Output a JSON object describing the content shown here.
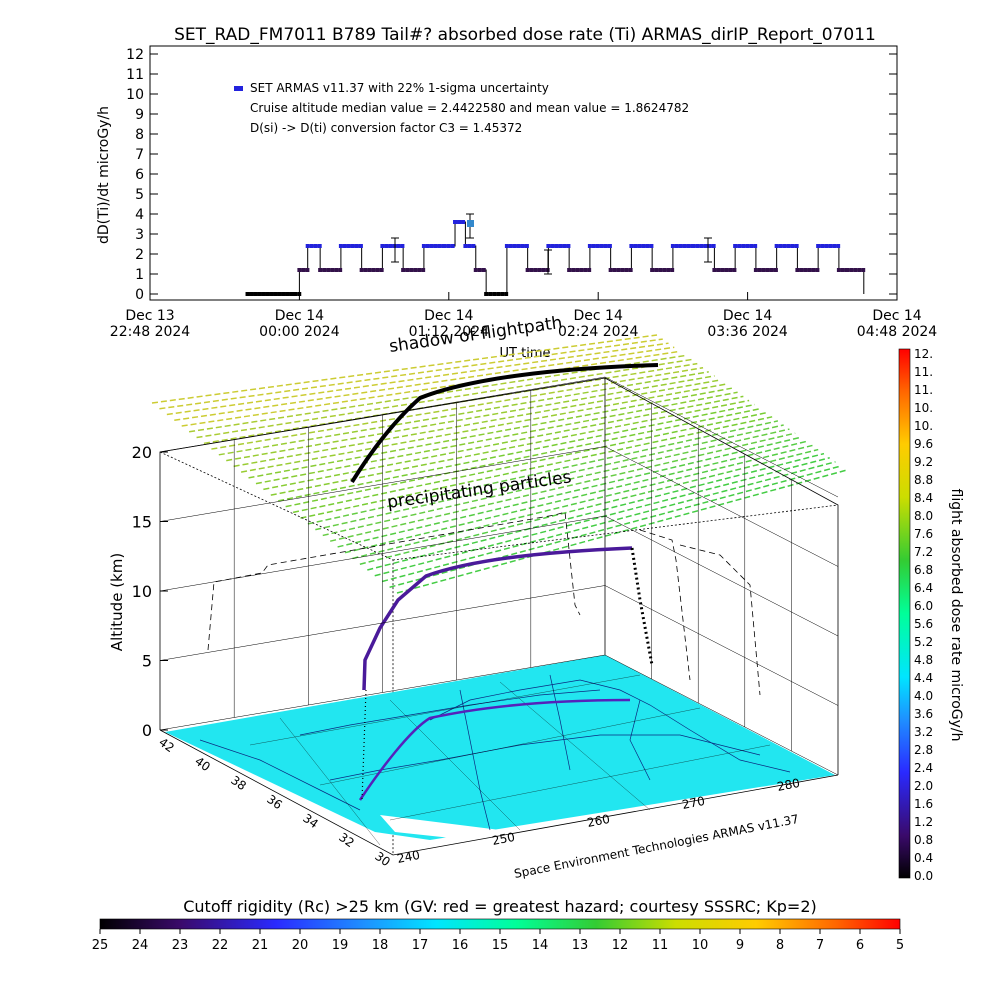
{
  "title": "SET_RAD_FM7011  B789 Tail#? absorbed dose rate (Ti) ARMAS_dirIP_Report_07011",
  "top_chart": {
    "ylabel": "dD(Ti)/dt microGy/h",
    "y_ticks": [
      "0",
      "1",
      "2",
      "3",
      "4",
      "5",
      "6",
      "7",
      "8",
      "9",
      "10",
      "11",
      "12"
    ],
    "legend_series": "SET ARMAS v11.37 with 22% 1-sigma uncertainty",
    "annotation_1": "Cruise altitude median value = 2.4422580 and mean value = 1.8624782",
    "annotation_2": "D(si) -> D(ti) conversion factor C3 = 1.45372",
    "x_ticks": [
      {
        "l1": "Dec 13",
        "l2": "22:48 2024"
      },
      {
        "l1": "Dec 14",
        "l2": "00:00 2024"
      },
      {
        "l1": "Dec 14",
        "l2": "01:12 2024"
      },
      {
        "l1": "Dec 14",
        "l2": "02:24 2024"
      },
      {
        "l1": "Dec 14",
        "l2": "03:36 2024"
      },
      {
        "l1": "Dec 14",
        "l2": "04:48 2024"
      }
    ],
    "xlabel": "UT time"
  },
  "chart_data": [
    {
      "type": "line",
      "title": "SET_RAD_FM7011  B789 Tail#? absorbed dose rate (Ti) ARMAS_dirIP_Report_07011",
      "xlabel": "UT time",
      "ylabel": "dD(Ti)/dt microGy/h",
      "ylim": [
        0,
        12
      ],
      "xlim": [
        "2024-12-13 22:48",
        "2024-12-14 04:48"
      ],
      "series": [
        {
          "name": "SET ARMAS v11.37 with 22% 1-sigma uncertainty",
          "x": [
            "2024-12-13 23:35",
            "2024-12-13 23:58",
            "2024-12-14 00:00",
            "2024-12-14 00:04",
            "2024-12-14 00:10",
            "2024-12-14 00:20",
            "2024-12-14 00:30",
            "2024-12-14 00:40",
            "2024-12-14 00:50",
            "2024-12-14 01:00",
            "2024-12-14 01:10",
            "2024-12-14 01:15",
            "2024-12-14 01:20",
            "2024-12-14 01:25",
            "2024-12-14 01:30",
            "2024-12-14 01:40",
            "2024-12-14 01:50",
            "2024-12-14 02:00",
            "2024-12-14 02:10",
            "2024-12-14 02:20",
            "2024-12-14 02:30",
            "2024-12-14 02:40",
            "2024-12-14 02:50",
            "2024-12-14 03:00",
            "2024-12-14 03:10",
            "2024-12-14 03:20",
            "2024-12-14 03:30",
            "2024-12-14 03:40",
            "2024-12-14 03:50",
            "2024-12-14 04:00",
            "2024-12-14 04:10",
            "2024-12-14 04:20",
            "2024-12-14 04:24",
            "2024-12-14 04:32"
          ],
          "values": [
            0,
            0,
            1.2,
            2.4,
            1.2,
            2.4,
            1.2,
            2.4,
            1.2,
            2.4,
            2.4,
            3.6,
            2.4,
            1.2,
            0,
            2.4,
            1.2,
            2.4,
            1.2,
            2.4,
            1.2,
            2.4,
            1.2,
            2.4,
            2.4,
            1.2,
            2.4,
            1.2,
            2.4,
            1.2,
            2.4,
            1.2,
            1.2,
            0
          ]
        }
      ],
      "stats": {
        "cruise_median": 2.442258,
        "cruise_mean": 1.8624782,
        "conversion_factor_C3": 1.45372
      }
    }
  ],
  "three_d": {
    "shadow_label": "shadow of flightpath",
    "precip_label": "precipitating particles",
    "z_label": "Altitude (km)",
    "z_ticks": [
      "0",
      "5",
      "10",
      "15",
      "20"
    ],
    "lat_ticks": [
      "42",
      "40",
      "38",
      "36",
      "34",
      "32",
      "30"
    ],
    "lon_ticks": [
      "240",
      "250",
      "260",
      "270",
      "280"
    ],
    "credit": "Space Environment Technologies ARMAS v11.37"
  },
  "right_colorbar": {
    "label": "flight absorbed dose rate microGy/h",
    "ticks": [
      "12.",
      "11.",
      "11.",
      "10.",
      "10.",
      "9.6",
      "9.2",
      "8.8",
      "8.4",
      "8.0",
      "7.6",
      "7.2",
      "6.8",
      "6.4",
      "6.0",
      "5.6",
      "5.2",
      "4.8",
      "4.4",
      "4.0",
      "3.6",
      "3.2",
      "2.8",
      "2.4",
      "2.0",
      "1.6",
      "1.2",
      "0.8",
      "0.4",
      "0.0"
    ]
  },
  "bottom_colorbar": {
    "title": "Cutoff rigidity (Rc) >25 km (GV: red = greatest hazard; courtesy SSSRC; Kp=2)",
    "ticks": [
      "25",
      "24",
      "23",
      "22",
      "21",
      "20",
      "19",
      "18",
      "17",
      "16",
      "15",
      "14",
      "13",
      "12",
      "11",
      "10",
      "9",
      "8",
      "7",
      "6",
      "5"
    ]
  },
  "colors": {
    "series_high": "#2222dd",
    "series_low": "#33114a",
    "map_fill": "#22e6f0",
    "precip_grid": "#9acd32",
    "shadow_line": "#000000"
  }
}
